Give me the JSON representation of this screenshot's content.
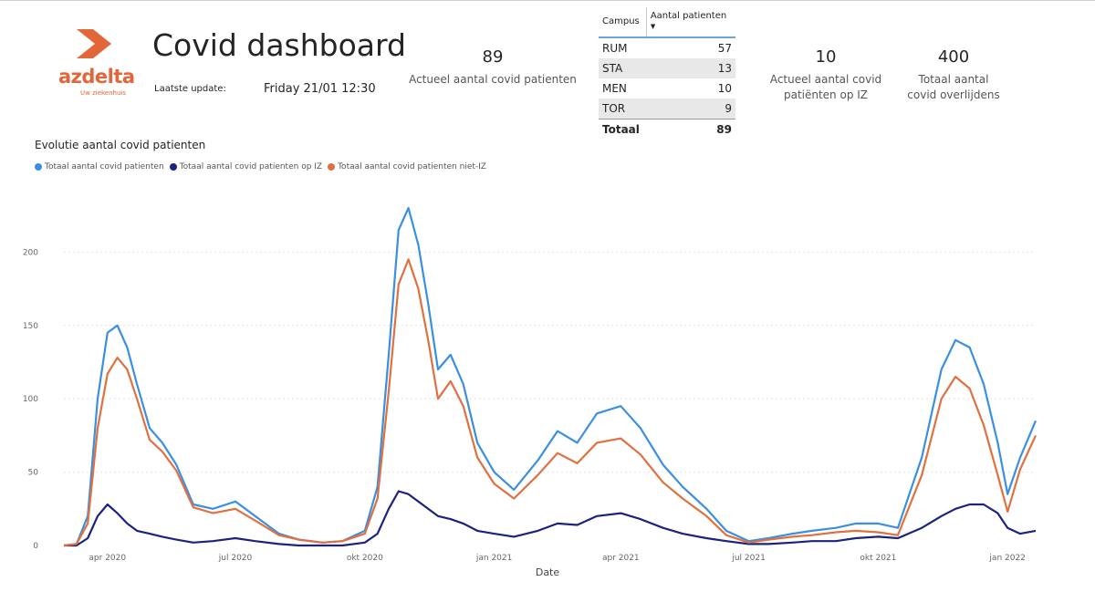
{
  "header": {
    "logo_text": "azdelta",
    "logo_subtext": "Uw ziekenhuis",
    "title": "Covid dashboard",
    "update_label": "Laatste update:",
    "update_value": "Friday 21/01 12:30"
  },
  "kpis": [
    {
      "value": "89",
      "label": "Actueel aantal covid patienten"
    },
    {
      "value": "10",
      "label_lines": [
        "Actueel aantal covid",
        "patiënten op IZ"
      ]
    },
    {
      "value": "400",
      "label_lines": [
        "Totaal aantal",
        "covid overlijdens"
      ]
    }
  ],
  "campus_table": {
    "headers": [
      "Campus",
      "Aantal patienten"
    ],
    "rows": [
      {
        "campus": "RUM",
        "count": "57"
      },
      {
        "campus": "STA",
        "count": "13"
      },
      {
        "campus": "MEN",
        "count": "10"
      },
      {
        "campus": "TOR",
        "count": "9"
      }
    ],
    "total": {
      "campus": "Totaal",
      "count": "89"
    }
  },
  "colors": {
    "accent": "#e2663a",
    "series_total": "#3a8fe0",
    "series_iz": "#1a237e",
    "series_niet_iz": "#e07040"
  },
  "chart_data": {
    "type": "line",
    "title": "Evolutie aantal covid patienten",
    "xlabel": "Date",
    "ylabel": "",
    "ylim": [
      0,
      240
    ],
    "yticks": [
      0,
      50,
      100,
      150,
      200
    ],
    "grid": true,
    "legend_position": "top-left",
    "xlim": [
      "2020-03-01",
      "2022-01-21"
    ],
    "xticks": [
      {
        "date": "2020-04-01",
        "label": "apr 2020"
      },
      {
        "date": "2020-07-01",
        "label": "jul 2020"
      },
      {
        "date": "2020-10-01",
        "label": "okt 2020"
      },
      {
        "date": "2021-01-01",
        "label": "jan 2021"
      },
      {
        "date": "2021-04-01",
        "label": "apr 2021"
      },
      {
        "date": "2021-07-01",
        "label": "jul 2021"
      },
      {
        "date": "2021-10-01",
        "label": "okt 2021"
      },
      {
        "date": "2022-01-01",
        "label": "jan 2022"
      }
    ],
    "x": [
      "2020-03-01",
      "2020-03-10",
      "2020-03-18",
      "2020-03-25",
      "2020-04-01",
      "2020-04-08",
      "2020-04-15",
      "2020-04-22",
      "2020-05-01",
      "2020-05-10",
      "2020-05-20",
      "2020-06-01",
      "2020-06-15",
      "2020-07-01",
      "2020-07-15",
      "2020-08-01",
      "2020-08-15",
      "2020-09-01",
      "2020-09-15",
      "2020-10-01",
      "2020-10-10",
      "2020-10-18",
      "2020-10-25",
      "2020-11-01",
      "2020-11-08",
      "2020-11-15",
      "2020-11-22",
      "2020-12-01",
      "2020-12-10",
      "2020-12-20",
      "2021-01-01",
      "2021-01-15",
      "2021-02-01",
      "2021-02-15",
      "2021-03-01",
      "2021-03-15",
      "2021-04-01",
      "2021-04-15",
      "2021-05-01",
      "2021-05-15",
      "2021-06-01",
      "2021-06-15",
      "2021-07-01",
      "2021-07-15",
      "2021-08-01",
      "2021-08-15",
      "2021-09-01",
      "2021-09-15",
      "2021-10-01",
      "2021-10-15",
      "2021-11-01",
      "2021-11-15",
      "2021-11-25",
      "2021-12-05",
      "2021-12-15",
      "2021-12-25",
      "2022-01-01",
      "2022-01-10",
      "2022-01-21"
    ],
    "series": [
      {
        "name": "Totaal aantal covid patienten",
        "values": [
          0,
          1,
          20,
          100,
          145,
          150,
          135,
          110,
          80,
          70,
          55,
          28,
          25,
          30,
          20,
          8,
          4,
          2,
          3,
          10,
          40,
          130,
          215,
          230,
          205,
          165,
          120,
          130,
          110,
          70,
          50,
          38,
          58,
          78,
          70,
          90,
          95,
          80,
          55,
          40,
          25,
          10,
          3,
          5,
          8,
          10,
          12,
          15,
          15,
          12,
          60,
          120,
          140,
          135,
          110,
          70,
          35,
          60,
          85
        ]
      },
      {
        "name": "Totaal aantal covid patienten op IZ",
        "values": [
          0,
          0,
          5,
          20,
          28,
          22,
          15,
          10,
          8,
          6,
          4,
          2,
          3,
          5,
          3,
          1,
          0,
          0,
          0,
          2,
          8,
          25,
          37,
          35,
          30,
          25,
          20,
          18,
          15,
          10,
          8,
          6,
          10,
          15,
          14,
          20,
          22,
          18,
          12,
          8,
          5,
          3,
          1,
          1,
          2,
          3,
          3,
          5,
          6,
          5,
          12,
          20,
          25,
          28,
          28,
          22,
          12,
          8,
          10
        ]
      },
      {
        "name": "Totaal aantal covid patienten niet-IZ",
        "values": [
          0,
          1,
          15,
          80,
          117,
          128,
          120,
          100,
          72,
          64,
          51,
          26,
          22,
          25,
          17,
          7,
          4,
          2,
          3,
          8,
          32,
          105,
          178,
          195,
          175,
          140,
          100,
          112,
          95,
          60,
          42,
          32,
          48,
          63,
          56,
          70,
          73,
          62,
          43,
          32,
          20,
          7,
          2,
          4,
          6,
          7,
          9,
          10,
          9,
          7,
          48,
          100,
          115,
          107,
          82,
          48,
          23,
          52,
          75
        ]
      }
    ]
  }
}
